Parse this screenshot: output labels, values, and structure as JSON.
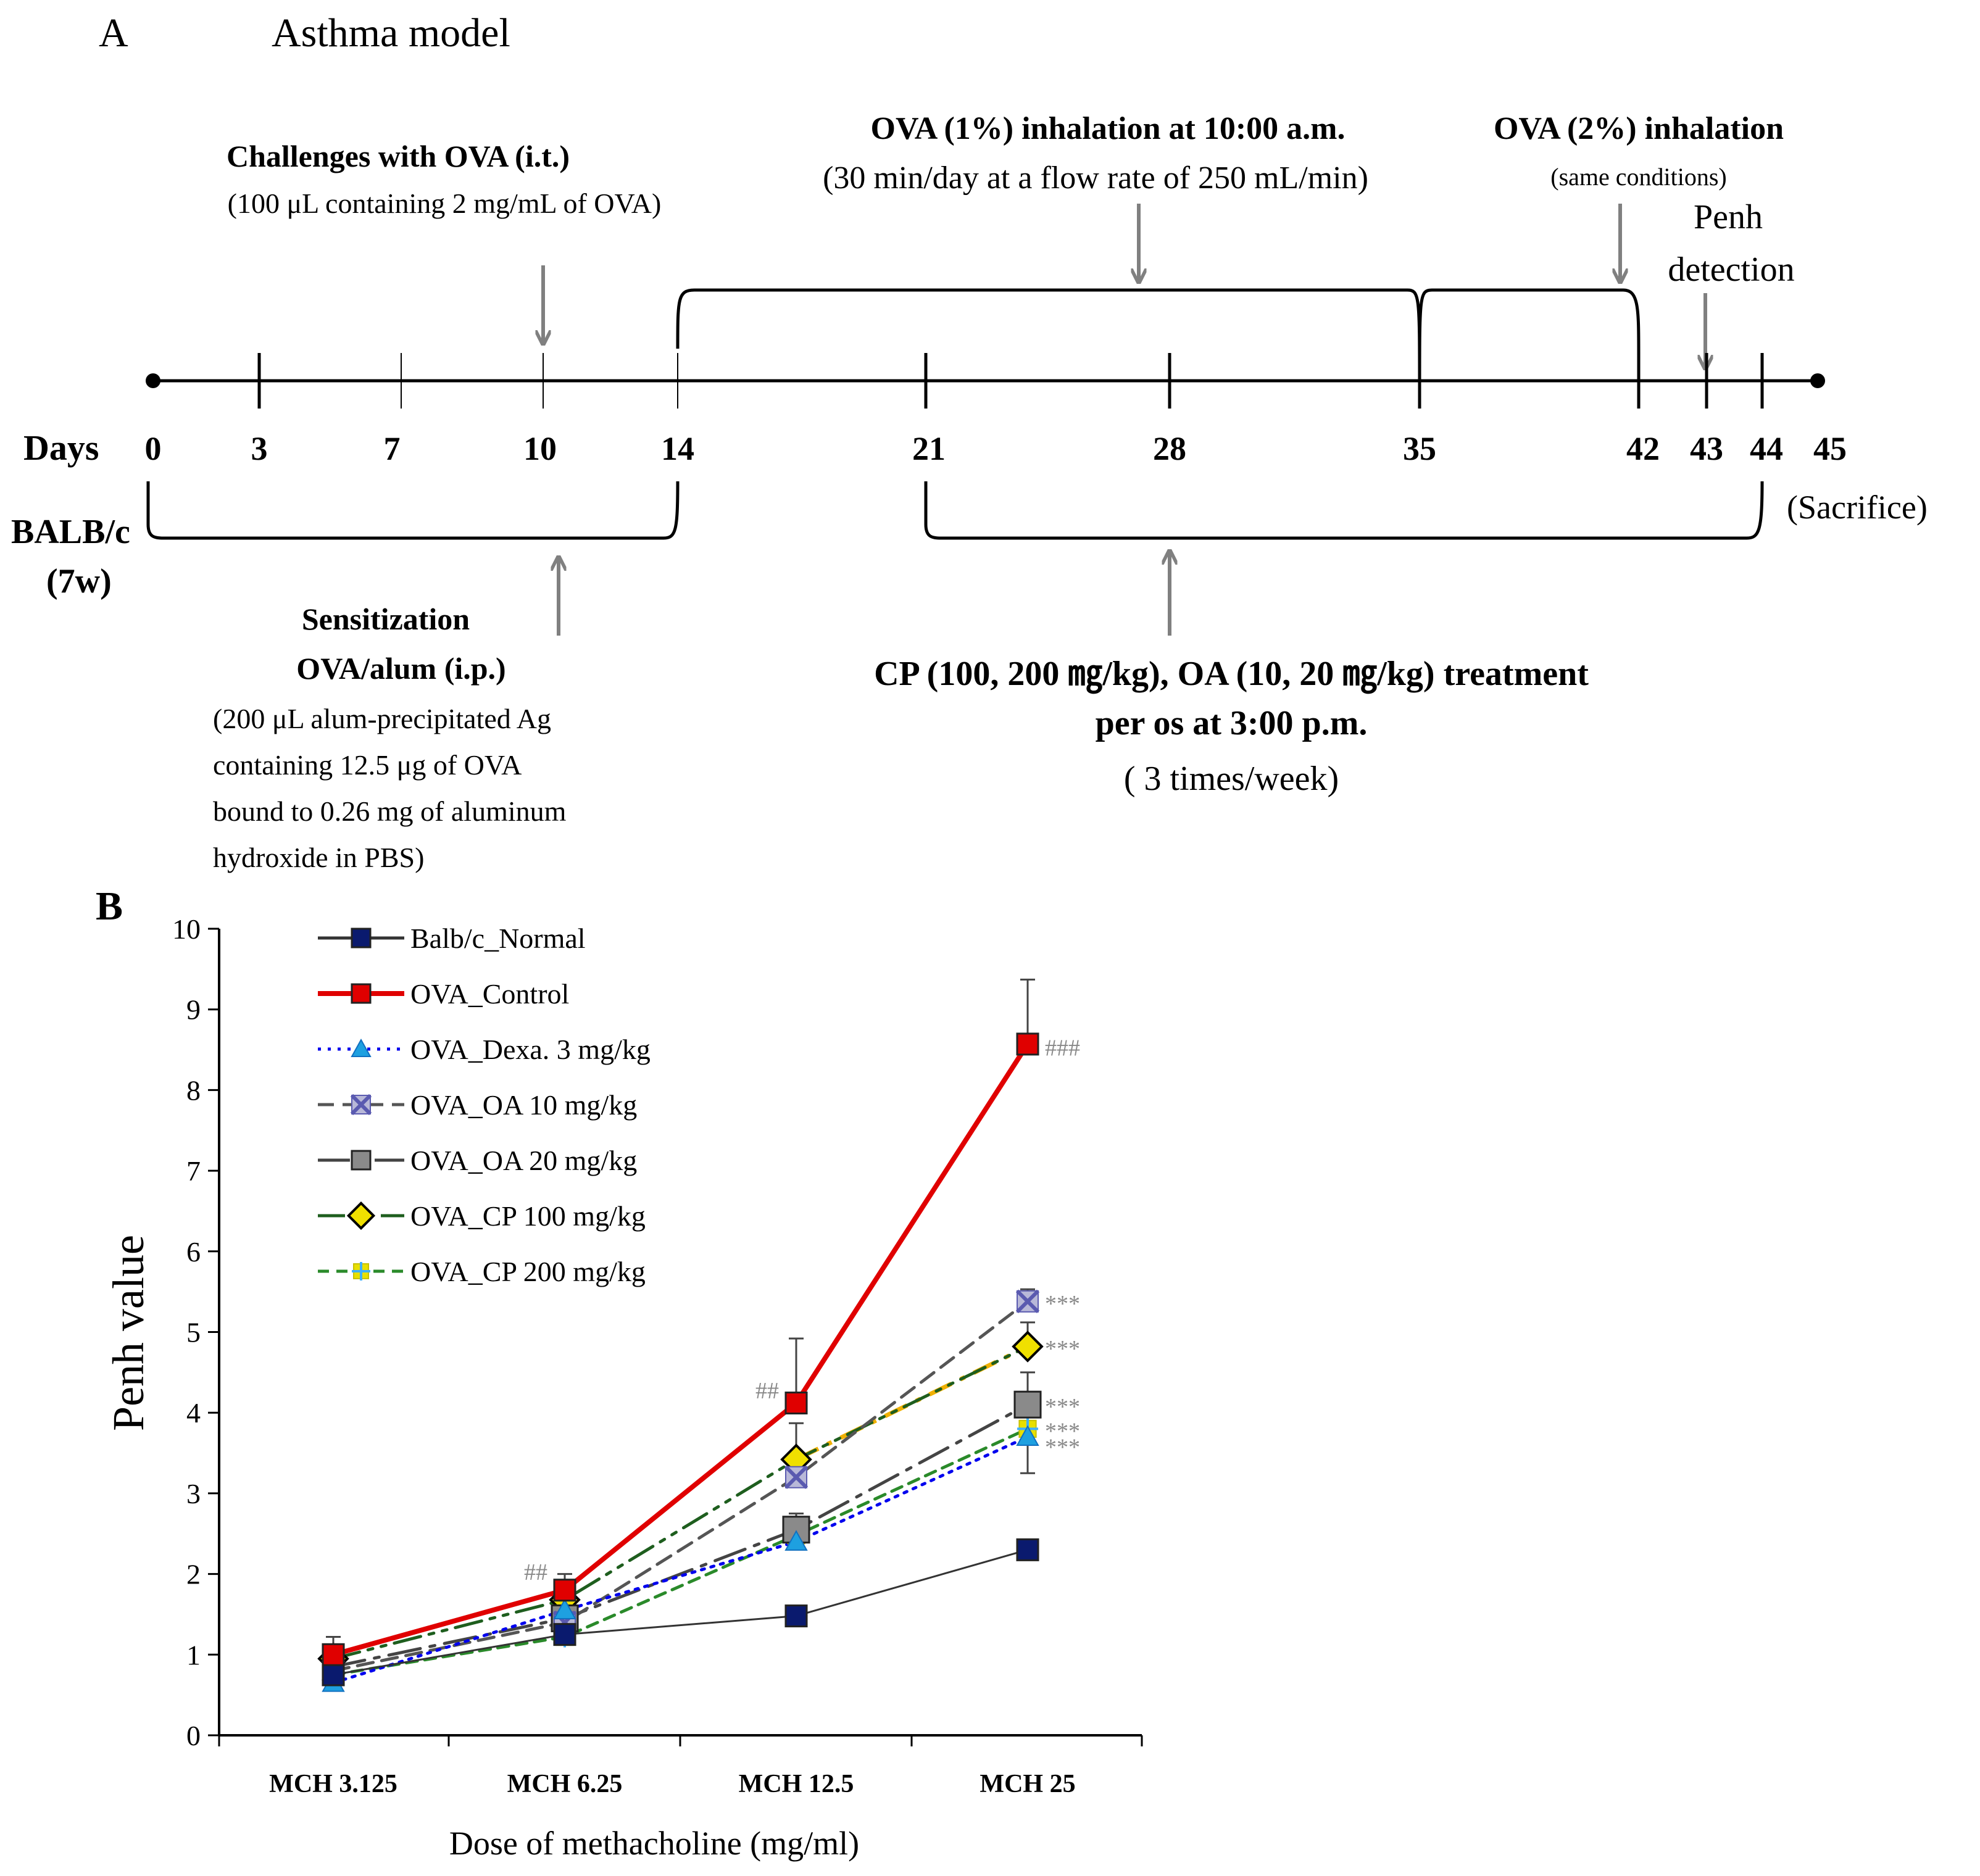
{
  "panel_a": {
    "letter": "A",
    "title": "Asthma model",
    "timeline": {
      "axis_label": "Days",
      "days": [
        "0",
        "3",
        "7",
        "10",
        "14",
        "21",
        "28",
        "35",
        "42",
        "43",
        "44",
        "45"
      ],
      "sacrifice": "(Sacrifice)",
      "strain_line1": "BALB/c",
      "strain_line2": "(7w)"
    },
    "challenge": {
      "title": "Challenges with OVA  (i.t.)",
      "detail": "(100 μL  containing  2 mg/mL  of OVA)"
    },
    "inhalation_1": {
      "title": "OVA (1%) inhalation at 10:00 a.m.",
      "detail": "(30 min/day  at a flow rate of 250 mL/min)"
    },
    "inhalation_2": {
      "title": "OVA (2%) inhalation",
      "detail": "(same  conditions)"
    },
    "penh": {
      "line1": "Penh",
      "line2": "detection"
    },
    "sensitization": {
      "title1": "Sensitization",
      "title2": "OVA/alum  (i.p.)",
      "detail": [
        "(200 μL  alum-precipitated  Ag",
        "containing  12.5 μg  of OVA",
        "bound to 0.26 mg  of aluminum",
        "hydroxide  in PBS)"
      ]
    },
    "treatment": {
      "line1": "CP (100, 200 ㎎/kg), OA (10, 20 ㎎/kg) treatment",
      "line2": "per os at 3:00 p.m.",
      "line3": "( 3 times/week)"
    }
  },
  "panel_b": {
    "letter": "B"
  },
  "chart_data": {
    "type": "line",
    "title": "",
    "xlabel": "Dose of methacholine  (mg/ml)",
    "ylabel": "Penh value",
    "ylim": [
      0,
      10
    ],
    "yticks": [
      0,
      1,
      2,
      3,
      4,
      5,
      6,
      7,
      8,
      9,
      10
    ],
    "categories": [
      "MCH 3.125",
      "MCH 6.25",
      "MCH 12.5",
      "MCH 25"
    ],
    "legend_position": "top-left",
    "series": [
      {
        "name": "Balb/c_Normal",
        "values": [
          0.75,
          1.25,
          1.48,
          2.3
        ],
        "errors": [
          0.08,
          0.08,
          0.1,
          0.12
        ],
        "color": "#333333",
        "marker": "square",
        "marker_color": "#0a1a6e",
        "dash": ""
      },
      {
        "name": "OVA_Control",
        "values": [
          1.0,
          1.8,
          4.12,
          8.57
        ],
        "errors": [
          0.22,
          0.2,
          0.8,
          0.8
        ],
        "color": "#e00000",
        "marker": "square",
        "marker_color": "#e00000",
        "dash": ""
      },
      {
        "name": "OVA_Dexa. 3 mg/kg",
        "values": [
          0.65,
          1.55,
          2.4,
          3.7
        ],
        "errors": [
          0.1,
          0.1,
          0.2,
          0.45
        ],
        "color": "#0000ee",
        "marker": "triangle",
        "marker_color": "#1ea0e0",
        "dash": "dot"
      },
      {
        "name": "OVA_OA 10 mg/kg",
        "values": [
          0.8,
          1.4,
          3.2,
          5.38
        ],
        "errors": [
          0.1,
          0.1,
          0.2,
          0.15
        ],
        "color": "#555555",
        "marker": "x",
        "marker_color": "#5a5ab0",
        "dash": "dash"
      },
      {
        "name": "OVA_OA 20 mg/kg",
        "values": [
          0.85,
          1.45,
          2.55,
          4.1
        ],
        "errors": [
          0.1,
          0.1,
          0.2,
          0.4
        ],
        "color": "#444444",
        "marker": "square",
        "marker_color": "#8a8a8a",
        "dash": "longdash"
      },
      {
        "name": "OVA_CP 100 mg/kg",
        "values": [
          0.95,
          1.68,
          3.42,
          4.82
        ],
        "errors": [
          0.1,
          0.1,
          0.45,
          0.3
        ],
        "color": "#1e5e1e",
        "marker": "diamond",
        "marker_color": "#f0e000",
        "dash": "dashdotdot"
      },
      {
        "name": "OVA_CP 200 mg/kg",
        "values": [
          0.75,
          1.22,
          2.48,
          3.8
        ],
        "errors": [
          0.08,
          0.08,
          0.15,
          0.2
        ],
        "color": "#2a8a2a",
        "marker": "plus",
        "marker_color": "#e8e000",
        "dash": "smalldash"
      }
    ],
    "extra_segments": [
      {
        "from_category": 2,
        "from_value": 3.42,
        "to_category": 3,
        "to_value": 4.82,
        "color": "#f0b000",
        "dash": "dashdot"
      }
    ],
    "annotations": [
      {
        "text": "##",
        "category": 1,
        "value": 2.05,
        "side": "left",
        "color": "#888888"
      },
      {
        "text": "##",
        "category": 2,
        "value": 4.3,
        "side": "left",
        "color": "#888888"
      },
      {
        "text": "###",
        "category": 3,
        "value": 8.55,
        "side": "right",
        "color": "#888888"
      },
      {
        "text": "***",
        "category": 3,
        "value": 5.38,
        "side": "right",
        "color": "#888888"
      },
      {
        "text": "***",
        "category": 3,
        "value": 4.82,
        "side": "right",
        "color": "#888888"
      },
      {
        "text": "***",
        "category": 3,
        "value": 4.1,
        "side": "right",
        "color": "#888888"
      },
      {
        "text": "***",
        "category": 3,
        "value": 3.8,
        "side": "right",
        "color": "#888888"
      },
      {
        "text": "***",
        "category": 3,
        "value": 3.6,
        "side": "right",
        "color": "#888888"
      }
    ]
  }
}
